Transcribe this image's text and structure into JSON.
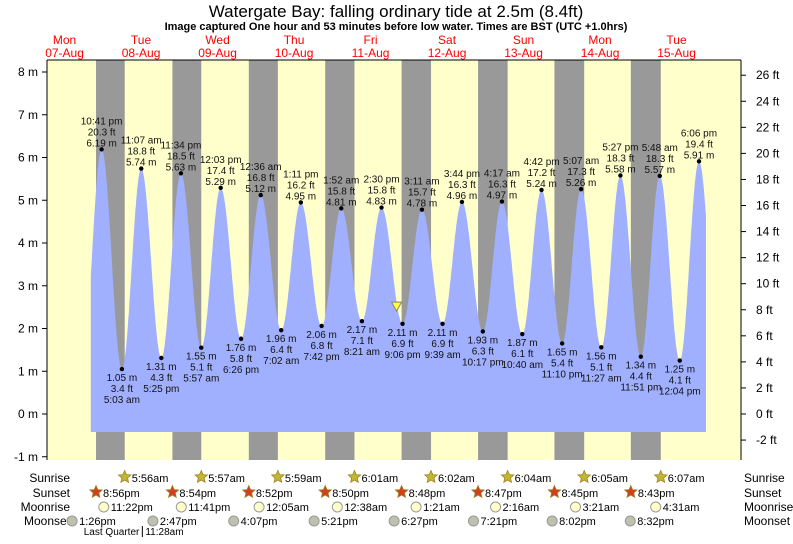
{
  "title": "Watergate Bay: falling  ordinary tide at 2.5m (8.4ft)",
  "subtitle": "Image captured One hour and 53 minutes before low water. Times are BST (UTC +1.0hrs)",
  "colors": {
    "day": "#ffffcc",
    "night": "#999999",
    "water": "#a0b0ff",
    "day_label": "#ff0000",
    "sunrise": "#c0b830",
    "sunset": "#d04020",
    "moonrise": "#ffffcc",
    "moonset": "#c0c0b0",
    "marker": "#ffff44"
  },
  "chart_data": {
    "type": "area",
    "title": "Watergate Bay: falling  ordinary tide at 2.5m (8.4ft)",
    "y_left": {
      "unit": "m",
      "range": [
        -1,
        8
      ],
      "ticks": [
        "-1 m",
        "0 m",
        "1 m",
        "2 m",
        "3 m",
        "4 m",
        "5 m",
        "6 m",
        "7 m",
        "8 m"
      ]
    },
    "y_right": {
      "unit": "ft",
      "ticks": [
        "-2 ft",
        "0 ft",
        "2 ft",
        "4 ft",
        "6 ft",
        "8 ft",
        "10 ft",
        "12 ft",
        "14 ft",
        "16 ft",
        "18 ft",
        "20 ft",
        "22 ft",
        "24 ft",
        "26 ft"
      ]
    },
    "days": [
      {
        "dow": "Mon",
        "date": "07-Aug"
      },
      {
        "dow": "Tue",
        "date": "08-Aug"
      },
      {
        "dow": "Wed",
        "date": "09-Aug"
      },
      {
        "dow": "Thu",
        "date": "10-Aug"
      },
      {
        "dow": "Fri",
        "date": "11-Aug"
      },
      {
        "dow": "Sat",
        "date": "12-Aug"
      },
      {
        "dow": "Sun",
        "date": "13-Aug"
      },
      {
        "dow": "Mon",
        "date": "14-Aug"
      },
      {
        "dow": "Tue",
        "date": "15-Aug"
      }
    ],
    "current": {
      "date": "11-Aug",
      "time": "19:13",
      "m": 2.5,
      "ft": 8.4,
      "state": "falling"
    },
    "extremes": [
      {
        "date": "07-Aug",
        "t": "22:41",
        "type": "high",
        "time": "10:41 pm",
        "ft": "20.3 ft",
        "m": 6.19
      },
      {
        "date": "08-Aug",
        "t": "05:03",
        "type": "low",
        "time": "5:03 am",
        "ft": "3.4 ft",
        "m": 1.05
      },
      {
        "date": "08-Aug",
        "t": "11:07",
        "type": "high",
        "time": "11:07 am",
        "ft": "18.8 ft",
        "m": 5.74
      },
      {
        "date": "08-Aug",
        "t": "17:25",
        "type": "low",
        "time": "5:25 pm",
        "ft": "4.3 ft",
        "m": 1.31
      },
      {
        "date": "08-Aug",
        "t": "23:34",
        "type": "high",
        "time": "11:34 pm",
        "ft": "18.5 ft",
        "m": 5.63
      },
      {
        "date": "09-Aug",
        "t": "05:57",
        "type": "low",
        "time": "5:57 am",
        "ft": "5.1 ft",
        "m": 1.55
      },
      {
        "date": "09-Aug",
        "t": "12:03",
        "type": "high",
        "time": "12:03 pm",
        "ft": "17.4 ft",
        "m": 5.29
      },
      {
        "date": "09-Aug",
        "t": "18:26",
        "type": "low",
        "time": "6:26 pm",
        "ft": "5.8 ft",
        "m": 1.76
      },
      {
        "date": "10-Aug",
        "t": "00:36",
        "type": "high",
        "time": "12:36 am",
        "ft": "16.8 ft",
        "m": 5.12
      },
      {
        "date": "10-Aug",
        "t": "07:02",
        "type": "low",
        "time": "7:02 am",
        "ft": "6.4 ft",
        "m": 1.96
      },
      {
        "date": "10-Aug",
        "t": "13:11",
        "type": "high",
        "time": "1:11 pm",
        "ft": "16.2 ft",
        "m": 4.95
      },
      {
        "date": "10-Aug",
        "t": "19:42",
        "type": "low",
        "time": "7:42 pm",
        "ft": "6.8 ft",
        "m": 2.06
      },
      {
        "date": "11-Aug",
        "t": "01:52",
        "type": "high",
        "time": "1:52 am",
        "ft": "15.8 ft",
        "m": 4.81
      },
      {
        "date": "11-Aug",
        "t": "08:21",
        "type": "low",
        "time": "8:21 am",
        "ft": "7.1 ft",
        "m": 2.17
      },
      {
        "date": "11-Aug",
        "t": "14:30",
        "type": "high",
        "time": "2:30 pm",
        "ft": "15.8 ft",
        "m": 4.83
      },
      {
        "date": "11-Aug",
        "t": "21:06",
        "type": "low",
        "time": "9:06 pm",
        "ft": "6.9 ft",
        "m": 2.11
      },
      {
        "date": "12-Aug",
        "t": "03:11",
        "type": "high",
        "time": "3:11 am",
        "ft": "15.7 ft",
        "m": 4.78
      },
      {
        "date": "12-Aug",
        "t": "09:39",
        "type": "low",
        "time": "9:39 am",
        "ft": "6.9 ft",
        "m": 2.11
      },
      {
        "date": "12-Aug",
        "t": "15:44",
        "type": "high",
        "time": "3:44 pm",
        "ft": "16.3 ft",
        "m": 4.96
      },
      {
        "date": "12-Aug",
        "t": "22:17",
        "type": "low",
        "time": "10:17 pm",
        "ft": "6.3 ft",
        "m": 1.93
      },
      {
        "date": "13-Aug",
        "t": "04:17",
        "type": "high",
        "time": "4:17 am",
        "ft": "16.3 ft",
        "m": 4.97
      },
      {
        "date": "13-Aug",
        "t": "10:40",
        "type": "low",
        "time": "10:40 am",
        "ft": "6.1 ft",
        "m": 1.87
      },
      {
        "date": "13-Aug",
        "t": "16:42",
        "type": "high",
        "time": "4:42 pm",
        "ft": "17.2 ft",
        "m": 5.24
      },
      {
        "date": "13-Aug",
        "t": "23:10",
        "type": "low",
        "time": "11:10 pm",
        "ft": "5.4 ft",
        "m": 1.65
      },
      {
        "date": "14-Aug",
        "t": "05:07",
        "type": "high",
        "time": "5:07 am",
        "ft": "17.3 ft",
        "m": 5.26
      },
      {
        "date": "14-Aug",
        "t": "11:27",
        "type": "low",
        "time": "11:27 am",
        "ft": "5.1 ft",
        "m": 1.56
      },
      {
        "date": "14-Aug",
        "t": "17:27",
        "type": "high",
        "time": "5:27 pm",
        "ft": "18.3 ft",
        "m": 5.58
      },
      {
        "date": "14-Aug",
        "t": "23:51",
        "type": "low",
        "time": "11:51 pm",
        "ft": "4.4 ft",
        "m": 1.34
      },
      {
        "date": "15-Aug",
        "t": "05:48",
        "type": "high",
        "time": "5:48 am",
        "ft": "18.3 ft",
        "m": 5.57
      },
      {
        "date": "15-Aug",
        "t": "12:04",
        "type": "low",
        "time": "12:04 pm",
        "ft": "4.1 ft",
        "m": 1.25
      },
      {
        "date": "15-Aug",
        "t": "18:06",
        "type": "high",
        "time": "6:06 pm",
        "ft": "19.4 ft",
        "m": 5.91
      }
    ]
  },
  "rows": {
    "labels": {
      "sunrise": "Sunrise",
      "sunset": "Sunset",
      "moonrise": "Moonrise",
      "moonset": "Moonset"
    },
    "sunrise": [
      {
        "date": "08-Aug",
        "t": "05:56",
        "label": "5:56am"
      },
      {
        "date": "09-Aug",
        "t": "05:57",
        "label": "5:57am"
      },
      {
        "date": "10-Aug",
        "t": "05:59",
        "label": "5:59am"
      },
      {
        "date": "11-Aug",
        "t": "06:01",
        "label": "6:01am"
      },
      {
        "date": "12-Aug",
        "t": "06:02",
        "label": "6:02am"
      },
      {
        "date": "13-Aug",
        "t": "06:04",
        "label": "6:04am"
      },
      {
        "date": "14-Aug",
        "t": "06:05",
        "label": "6:05am"
      },
      {
        "date": "15-Aug",
        "t": "06:07",
        "label": "6:07am"
      }
    ],
    "sunset": [
      {
        "date": "07-Aug",
        "t": "20:56",
        "label": "8:56pm"
      },
      {
        "date": "08-Aug",
        "t": "20:54",
        "label": "8:54pm"
      },
      {
        "date": "09-Aug",
        "t": "20:52",
        "label": "8:52pm"
      },
      {
        "date": "10-Aug",
        "t": "20:50",
        "label": "8:50pm"
      },
      {
        "date": "11-Aug",
        "t": "20:48",
        "label": "8:48pm"
      },
      {
        "date": "12-Aug",
        "t": "20:47",
        "label": "8:47pm"
      },
      {
        "date": "13-Aug",
        "t": "20:45",
        "label": "8:45pm"
      },
      {
        "date": "14-Aug",
        "t": "20:43",
        "label": "8:43pm"
      }
    ],
    "moonrise": [
      {
        "date": "07-Aug",
        "t": "23:22",
        "label": "11:22pm"
      },
      {
        "date": "08-Aug",
        "t": "23:41",
        "label": "11:41pm"
      },
      {
        "date": "10-Aug",
        "t": "00:05",
        "label": "12:05am"
      },
      {
        "date": "11-Aug",
        "t": "00:38",
        "label": "12:38am"
      },
      {
        "date": "12-Aug",
        "t": "01:21",
        "label": "1:21am"
      },
      {
        "date": "13-Aug",
        "t": "02:16",
        "label": "2:16am"
      },
      {
        "date": "14-Aug",
        "t": "03:21",
        "label": "3:21am"
      },
      {
        "date": "15-Aug",
        "t": "04:31",
        "label": "4:31am"
      }
    ],
    "moonset": [
      {
        "date": "07-Aug",
        "t": "13:26",
        "label": "1:26pm"
      },
      {
        "date": "08-Aug",
        "t": "14:47",
        "label": "2:47pm"
      },
      {
        "date": "09-Aug",
        "t": "16:07",
        "label": "4:07pm"
      },
      {
        "date": "10-Aug",
        "t": "17:21",
        "label": "5:21pm"
      },
      {
        "date": "11-Aug",
        "t": "18:27",
        "label": "6:27pm"
      },
      {
        "date": "12-Aug",
        "t": "19:21",
        "label": "7:21pm"
      },
      {
        "date": "13-Aug",
        "t": "20:02",
        "label": "8:02pm"
      },
      {
        "date": "14-Aug",
        "t": "20:32",
        "label": "8:32pm"
      }
    ],
    "moon_phase": {
      "date": "08-Aug",
      "t": "11:28",
      "label": "Last Quarter",
      "time": "11:28am"
    }
  }
}
